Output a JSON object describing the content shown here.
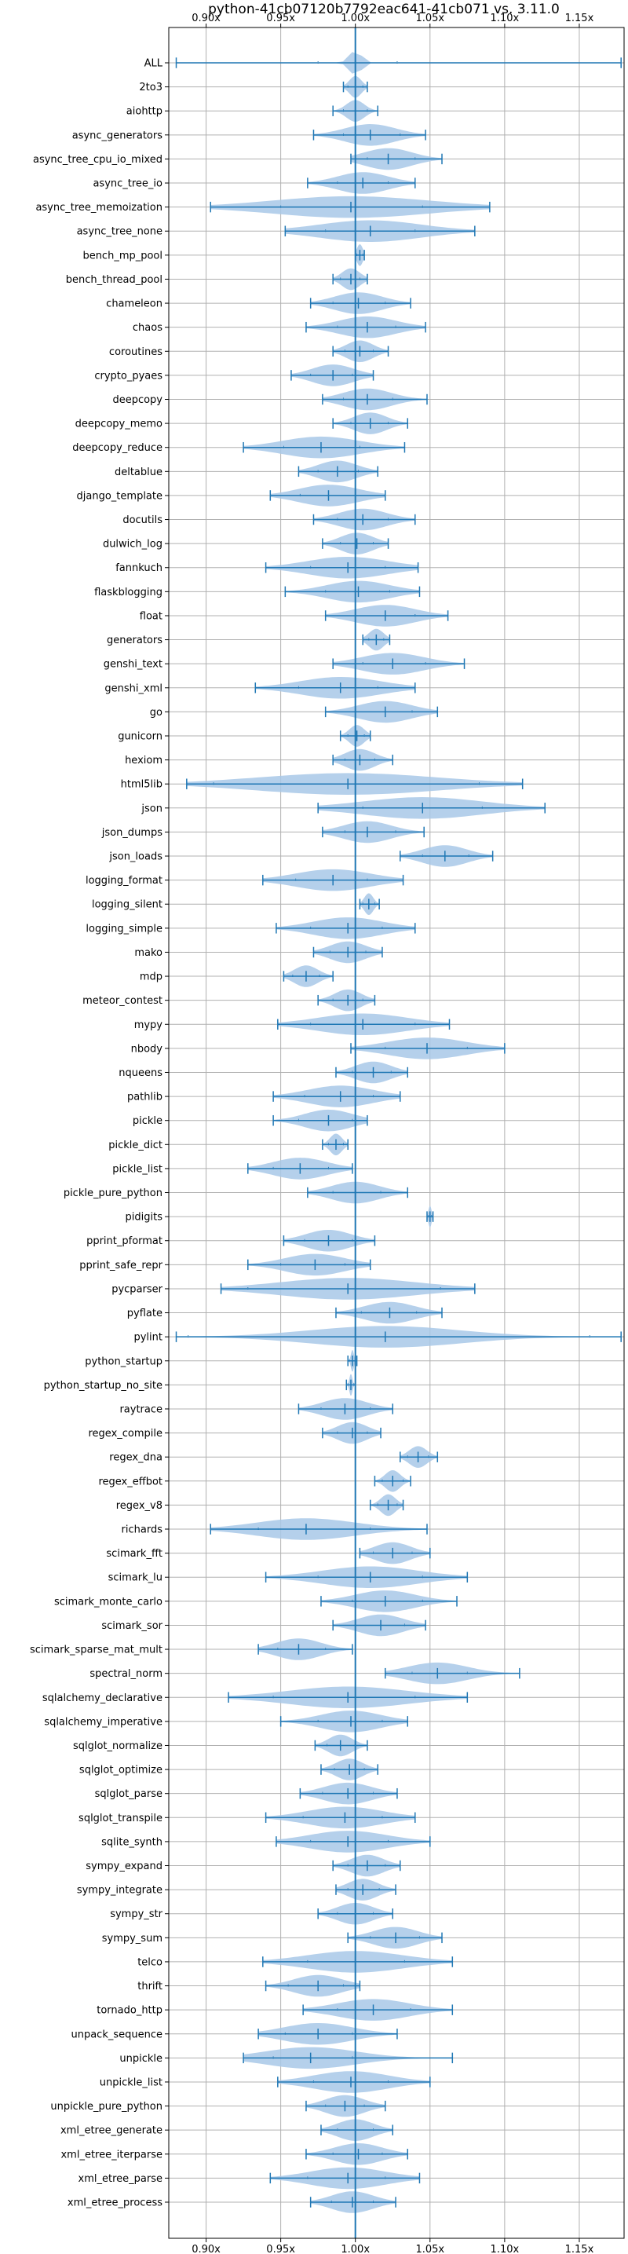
{
  "chart_data": {
    "type": "violin",
    "title": "python-41cb07120b7792eac641-41cb071 vs. 3.11.0",
    "orientation": "horizontal",
    "xlim": [
      0.875,
      1.18
    ],
    "x_ticks": [
      0.9,
      0.95,
      1.0,
      1.05,
      1.1,
      1.15
    ],
    "x_tick_labels": [
      "0.90x",
      "0.95x",
      "1.00x",
      "1.05x",
      "1.10x",
      "1.15x"
    ],
    "x_tick_position": "top and bottom",
    "reference_line": 1.0,
    "grid": true,
    "colors": {
      "violin_fill": "#a8c8e8",
      "line": "#1f77b4",
      "grid": "#b0b0b0"
    },
    "benchmarks": [
      {
        "name": "ALL",
        "min": 0.88,
        "max": 1.178,
        "mean": 1.0,
        "q1": 0.975,
        "q3": 1.028,
        "spread": 0.004
      },
      {
        "name": "2to3",
        "min": 0.992,
        "max": 1.008,
        "mean": 1.0,
        "q1": 0.995,
        "q3": 1.005,
        "spread": 0.004
      },
      {
        "name": "aiohttp",
        "min": 0.985,
        "max": 1.015,
        "mean": 1.0,
        "q1": 0.992,
        "q3": 1.008,
        "spread": 0.006
      },
      {
        "name": "async_generators",
        "min": 0.972,
        "max": 1.047,
        "mean": 1.01,
        "q1": 0.992,
        "q3": 1.03,
        "spread": 0.017
      },
      {
        "name": "async_tree_cpu_io_mixed",
        "min": 0.997,
        "max": 1.058,
        "mean": 1.022,
        "q1": 1.008,
        "q3": 1.04,
        "spread": 0.016
      },
      {
        "name": "async_tree_io",
        "min": 0.968,
        "max": 1.04,
        "mean": 1.005,
        "q1": 0.988,
        "q3": 1.022,
        "spread": 0.017
      },
      {
        "name": "async_tree_memoization",
        "min": 0.903,
        "max": 1.09,
        "mean": 0.997,
        "q1": 0.95,
        "q3": 1.045,
        "spread": 0.052
      },
      {
        "name": "async_tree_none",
        "min": 0.953,
        "max": 1.08,
        "mean": 1.01,
        "q1": 0.98,
        "q3": 1.04,
        "spread": 0.034
      },
      {
        "name": "bench_mp_pool",
        "min": 1.0,
        "max": 1.006,
        "mean": 1.003,
        "q1": 1.001,
        "q3": 1.005,
        "spread": 0.002
      },
      {
        "name": "bench_thread_pool",
        "min": 0.985,
        "max": 1.008,
        "mean": 0.997,
        "q1": 0.99,
        "q3": 1.003,
        "spread": 0.006
      },
      {
        "name": "chameleon",
        "min": 0.97,
        "max": 1.037,
        "mean": 1.002,
        "q1": 0.985,
        "q3": 1.02,
        "spread": 0.016
      },
      {
        "name": "chaos",
        "min": 0.967,
        "max": 1.047,
        "mean": 1.008,
        "q1": 0.988,
        "q3": 1.027,
        "spread": 0.019
      },
      {
        "name": "coroutines",
        "min": 0.985,
        "max": 1.022,
        "mean": 1.003,
        "q1": 0.993,
        "q3": 1.012,
        "spread": 0.009
      },
      {
        "name": "crypto_pyaes",
        "min": 0.957,
        "max": 1.012,
        "mean": 0.985,
        "q1": 0.97,
        "q3": 0.998,
        "spread": 0.014
      },
      {
        "name": "deepcopy",
        "min": 0.978,
        "max": 1.048,
        "mean": 1.008,
        "q1": 0.992,
        "q3": 1.025,
        "spread": 0.016
      },
      {
        "name": "deepcopy_memo",
        "min": 0.985,
        "max": 1.035,
        "mean": 1.01,
        "q1": 0.997,
        "q3": 1.022,
        "spread": 0.011
      },
      {
        "name": "deepcopy_reduce",
        "min": 0.925,
        "max": 1.033,
        "mean": 0.977,
        "q1": 0.952,
        "q3": 1.003,
        "spread": 0.026
      },
      {
        "name": "deltablue",
        "min": 0.962,
        "max": 1.015,
        "mean": 0.988,
        "q1": 0.975,
        "q3": 1.002,
        "spread": 0.013
      },
      {
        "name": "django_template",
        "min": 0.943,
        "max": 1.02,
        "mean": 0.982,
        "q1": 0.963,
        "q3": 1.0,
        "spread": 0.02
      },
      {
        "name": "docutils",
        "min": 0.972,
        "max": 1.04,
        "mean": 1.005,
        "q1": 0.988,
        "q3": 1.022,
        "spread": 0.016
      },
      {
        "name": "dulwich_log",
        "min": 0.978,
        "max": 1.022,
        "mean": 1.001,
        "q1": 0.99,
        "q3": 1.012,
        "spread": 0.011
      },
      {
        "name": "fannkuch",
        "min": 0.94,
        "max": 1.042,
        "mean": 0.995,
        "q1": 0.97,
        "q3": 1.02,
        "spread": 0.027
      },
      {
        "name": "flaskblogging",
        "min": 0.953,
        "max": 1.043,
        "mean": 1.002,
        "q1": 0.98,
        "q3": 1.023,
        "spread": 0.021
      },
      {
        "name": "float",
        "min": 0.98,
        "max": 1.062,
        "mean": 1.02,
        "q1": 1.0,
        "q3": 1.04,
        "spread": 0.02
      },
      {
        "name": "generators",
        "min": 1.005,
        "max": 1.023,
        "mean": 1.014,
        "q1": 1.009,
        "q3": 1.019,
        "spread": 0.005
      },
      {
        "name": "genshi_text",
        "min": 0.985,
        "max": 1.073,
        "mean": 1.025,
        "q1": 1.005,
        "q3": 1.047,
        "spread": 0.021
      },
      {
        "name": "genshi_xml",
        "min": 0.933,
        "max": 1.04,
        "mean": 0.99,
        "q1": 0.962,
        "q3": 1.015,
        "spread": 0.027
      },
      {
        "name": "go",
        "min": 0.98,
        "max": 1.055,
        "mean": 1.02,
        "q1": 1.0,
        "q3": 1.038,
        "spread": 0.018
      },
      {
        "name": "gunicorn",
        "min": 0.99,
        "max": 1.01,
        "mean": 1.001,
        "q1": 0.995,
        "q3": 1.006,
        "spread": 0.005
      },
      {
        "name": "hexiom",
        "min": 0.985,
        "max": 1.025,
        "mean": 1.003,
        "q1": 0.993,
        "q3": 1.013,
        "spread": 0.01
      },
      {
        "name": "html5lib",
        "min": 0.887,
        "max": 1.112,
        "mean": 0.995,
        "q1": 0.905,
        "q3": 1.083,
        "spread": 0.06
      },
      {
        "name": "json",
        "min": 0.975,
        "max": 1.127,
        "mean": 1.045,
        "q1": 1.005,
        "q3": 1.085,
        "spread": 0.04
      },
      {
        "name": "json_dumps",
        "min": 0.978,
        "max": 1.046,
        "mean": 1.008,
        "q1": 0.993,
        "q3": 1.027,
        "spread": 0.016
      },
      {
        "name": "json_loads",
        "min": 1.03,
        "max": 1.092,
        "mean": 1.06,
        "q1": 1.045,
        "q3": 1.076,
        "spread": 0.015
      },
      {
        "name": "logging_format",
        "min": 0.938,
        "max": 1.032,
        "mean": 0.985,
        "q1": 0.96,
        "q3": 1.008,
        "spread": 0.025
      },
      {
        "name": "logging_silent",
        "min": 1.003,
        "max": 1.016,
        "mean": 1.009,
        "q1": 1.005,
        "q3": 1.013,
        "spread": 0.003
      },
      {
        "name": "logging_simple",
        "min": 0.947,
        "max": 1.04,
        "mean": 0.995,
        "q1": 0.97,
        "q3": 1.018,
        "spread": 0.023
      },
      {
        "name": "mako",
        "min": 0.972,
        "max": 1.018,
        "mean": 0.995,
        "q1": 0.983,
        "q3": 1.007,
        "spread": 0.012
      },
      {
        "name": "mdp",
        "min": 0.952,
        "max": 0.985,
        "mean": 0.967,
        "q1": 0.958,
        "q3": 0.976,
        "spread": 0.008
      },
      {
        "name": "meteor_contest",
        "min": 0.975,
        "max": 1.013,
        "mean": 0.995,
        "q1": 0.985,
        "q3": 1.005,
        "spread": 0.009
      },
      {
        "name": "mypy",
        "min": 0.948,
        "max": 1.063,
        "mean": 1.005,
        "q1": 0.97,
        "q3": 1.04,
        "spread": 0.03
      },
      {
        "name": "nbody",
        "min": 0.997,
        "max": 1.1,
        "mean": 1.048,
        "q1": 1.02,
        "q3": 1.075,
        "spread": 0.026
      },
      {
        "name": "nqueens",
        "min": 0.987,
        "max": 1.035,
        "mean": 1.012,
        "q1": 0.998,
        "q3": 1.024,
        "spread": 0.012
      },
      {
        "name": "pathlib",
        "min": 0.945,
        "max": 1.03,
        "mean": 0.99,
        "q1": 0.966,
        "q3": 1.012,
        "spread": 0.022
      },
      {
        "name": "pickle",
        "min": 0.945,
        "max": 1.008,
        "mean": 0.982,
        "q1": 0.962,
        "q3": 0.998,
        "spread": 0.016
      },
      {
        "name": "pickle_dict",
        "min": 0.978,
        "max": 0.995,
        "mean": 0.987,
        "q1": 0.982,
        "q3": 0.992,
        "spread": 0.004
      },
      {
        "name": "pickle_list",
        "min": 0.928,
        "max": 0.998,
        "mean": 0.963,
        "q1": 0.945,
        "q3": 0.982,
        "spread": 0.018
      },
      {
        "name": "pickle_pure_python",
        "min": 0.968,
        "max": 1.035,
        "mean": 1.0,
        "q1": 0.985,
        "q3": 1.017,
        "spread": 0.016
      },
      {
        "name": "pidigits",
        "min": 1.048,
        "max": 1.052,
        "mean": 1.05,
        "q1": 1.049,
        "q3": 1.051,
        "spread": 0.001
      },
      {
        "name": "pprint_pformat",
        "min": 0.952,
        "max": 1.013,
        "mean": 0.982,
        "q1": 0.966,
        "q3": 0.998,
        "spread": 0.015
      },
      {
        "name": "pprint_safe_repr",
        "min": 0.928,
        "max": 1.01,
        "mean": 0.973,
        "q1": 0.95,
        "q3": 0.993,
        "spread": 0.02
      },
      {
        "name": "pycparser",
        "min": 0.91,
        "max": 1.08,
        "mean": 0.995,
        "q1": 0.928,
        "q3": 1.057,
        "spread": 0.045
      },
      {
        "name": "pyflate",
        "min": 0.987,
        "max": 1.058,
        "mean": 1.023,
        "q1": 1.004,
        "q3": 1.041,
        "spread": 0.017
      },
      {
        "name": "pylint",
        "min": 0.88,
        "max": 1.178,
        "mean": 1.02,
        "q1": 0.888,
        "q3": 1.157,
        "spread": 0.05
      },
      {
        "name": "python_startup",
        "min": 0.995,
        "max": 1.001,
        "mean": 0.998,
        "q1": 0.996,
        "q3": 1.0,
        "spread": 0.001
      },
      {
        "name": "python_startup_no_site",
        "min": 0.994,
        "max": 1.0,
        "mean": 0.997,
        "q1": 0.995,
        "q3": 0.999,
        "spread": 0.001
      },
      {
        "name": "raytrace",
        "min": 0.962,
        "max": 1.025,
        "mean": 0.993,
        "q1": 0.977,
        "q3": 1.01,
        "spread": 0.015
      },
      {
        "name": "regex_compile",
        "min": 0.978,
        "max": 1.017,
        "mean": 0.998,
        "q1": 0.988,
        "q3": 1.008,
        "spread": 0.01
      },
      {
        "name": "regex_dna",
        "min": 1.03,
        "max": 1.055,
        "mean": 1.042,
        "q1": 1.035,
        "q3": 1.049,
        "spread": 0.006
      },
      {
        "name": "regex_effbot",
        "min": 1.013,
        "max": 1.037,
        "mean": 1.025,
        "q1": 1.018,
        "q3": 1.032,
        "spread": 0.005
      },
      {
        "name": "regex_v8",
        "min": 1.01,
        "max": 1.032,
        "mean": 1.022,
        "q1": 1.015,
        "q3": 1.028,
        "spread": 0.005
      },
      {
        "name": "richards",
        "min": 0.903,
        "max": 1.048,
        "mean": 0.967,
        "q1": 0.935,
        "q3": 1.01,
        "spread": 0.033
      },
      {
        "name": "scimark_fft",
        "min": 1.003,
        "max": 1.05,
        "mean": 1.025,
        "q1": 1.012,
        "q3": 1.038,
        "spread": 0.012
      },
      {
        "name": "scimark_lu",
        "min": 0.94,
        "max": 1.075,
        "mean": 1.01,
        "q1": 0.975,
        "q3": 1.045,
        "spread": 0.032
      },
      {
        "name": "scimark_monte_carlo",
        "min": 0.977,
        "max": 1.068,
        "mean": 1.02,
        "q1": 0.998,
        "q3": 1.045,
        "spread": 0.02
      },
      {
        "name": "scimark_sor",
        "min": 0.985,
        "max": 1.047,
        "mean": 1.017,
        "q1": 1.0,
        "q3": 1.033,
        "spread": 0.015
      },
      {
        "name": "scimark_sparse_mat_mult",
        "min": 0.935,
        "max": 0.998,
        "mean": 0.962,
        "q1": 0.948,
        "q3": 0.98,
        "spread": 0.015
      },
      {
        "name": "spectral_norm",
        "min": 1.02,
        "max": 1.11,
        "mean": 1.055,
        "q1": 1.038,
        "q3": 1.075,
        "spread": 0.02
      },
      {
        "name": "sqlalchemy_declarative",
        "min": 0.915,
        "max": 1.075,
        "mean": 0.995,
        "q1": 0.945,
        "q3": 1.04,
        "spread": 0.04
      },
      {
        "name": "sqlalchemy_imperative",
        "min": 0.95,
        "max": 1.035,
        "mean": 0.997,
        "q1": 0.975,
        "q3": 1.018,
        "spread": 0.02
      },
      {
        "name": "sqlglot_normalize",
        "min": 0.973,
        "max": 1.008,
        "mean": 0.99,
        "q1": 0.981,
        "q3": 1.0,
        "spread": 0.008
      },
      {
        "name": "sqlglot_optimize",
        "min": 0.977,
        "max": 1.015,
        "mean": 0.996,
        "q1": 0.986,
        "q3": 1.006,
        "spread": 0.009
      },
      {
        "name": "sqlglot_parse",
        "min": 0.963,
        "max": 1.028,
        "mean": 0.995,
        "q1": 0.978,
        "q3": 1.012,
        "spread": 0.016
      },
      {
        "name": "sqlglot_transpile",
        "min": 0.94,
        "max": 1.04,
        "mean": 0.993,
        "q1": 0.965,
        "q3": 1.018,
        "spread": 0.025
      },
      {
        "name": "sqlite_synth",
        "min": 0.947,
        "max": 1.05,
        "mean": 0.995,
        "q1": 0.97,
        "q3": 1.022,
        "spread": 0.026
      },
      {
        "name": "sympy_expand",
        "min": 0.985,
        "max": 1.03,
        "mean": 1.008,
        "q1": 0.995,
        "q3": 1.02,
        "spread": 0.011
      },
      {
        "name": "sympy_integrate",
        "min": 0.987,
        "max": 1.027,
        "mean": 1.005,
        "q1": 0.995,
        "q3": 1.016,
        "spread": 0.01
      },
      {
        "name": "sympy_str",
        "min": 0.975,
        "max": 1.025,
        "mean": 1.0,
        "q1": 0.988,
        "q3": 1.012,
        "spread": 0.012
      },
      {
        "name": "sympy_sum",
        "min": 0.995,
        "max": 1.058,
        "mean": 1.027,
        "q1": 1.01,
        "q3": 1.043,
        "spread": 0.015
      },
      {
        "name": "telco",
        "min": 0.938,
        "max": 1.065,
        "mean": 1.0,
        "q1": 0.968,
        "q3": 1.033,
        "spread": 0.032
      },
      {
        "name": "thrift",
        "min": 0.94,
        "max": 1.003,
        "mean": 0.975,
        "q1": 0.955,
        "q3": 0.992,
        "spread": 0.016
      },
      {
        "name": "tornado_http",
        "min": 0.965,
        "max": 1.065,
        "mean": 1.012,
        "q1": 0.988,
        "q3": 1.037,
        "spread": 0.024
      },
      {
        "name": "unpack_sequence",
        "min": 0.935,
        "max": 1.028,
        "mean": 0.975,
        "q1": 0.953,
        "q3": 0.998,
        "spread": 0.023
      },
      {
        "name": "unpickle",
        "min": 0.925,
        "max": 1.065,
        "mean": 0.97,
        "q1": 0.945,
        "q3": 0.998,
        "spread": 0.03
      },
      {
        "name": "unpickle_list",
        "min": 0.948,
        "max": 1.05,
        "mean": 0.997,
        "q1": 0.972,
        "q3": 1.022,
        "spread": 0.025
      },
      {
        "name": "unpickle_pure_python",
        "min": 0.967,
        "max": 1.02,
        "mean": 0.993,
        "q1": 0.98,
        "q3": 1.006,
        "spread": 0.013
      },
      {
        "name": "xml_etree_generate",
        "min": 0.977,
        "max": 1.025,
        "mean": 1.0,
        "q1": 0.988,
        "q3": 1.012,
        "spread": 0.012
      },
      {
        "name": "xml_etree_iterparse",
        "min": 0.967,
        "max": 1.035,
        "mean": 1.002,
        "q1": 0.985,
        "q3": 1.018,
        "spread": 0.016
      },
      {
        "name": "xml_etree_parse",
        "min": 0.943,
        "max": 1.043,
        "mean": 0.995,
        "q1": 0.968,
        "q3": 1.02,
        "spread": 0.025
      },
      {
        "name": "xml_etree_process",
        "min": 0.97,
        "max": 1.027,
        "mean": 0.998,
        "q1": 0.984,
        "q3": 1.012,
        "spread": 0.014
      }
    ]
  }
}
